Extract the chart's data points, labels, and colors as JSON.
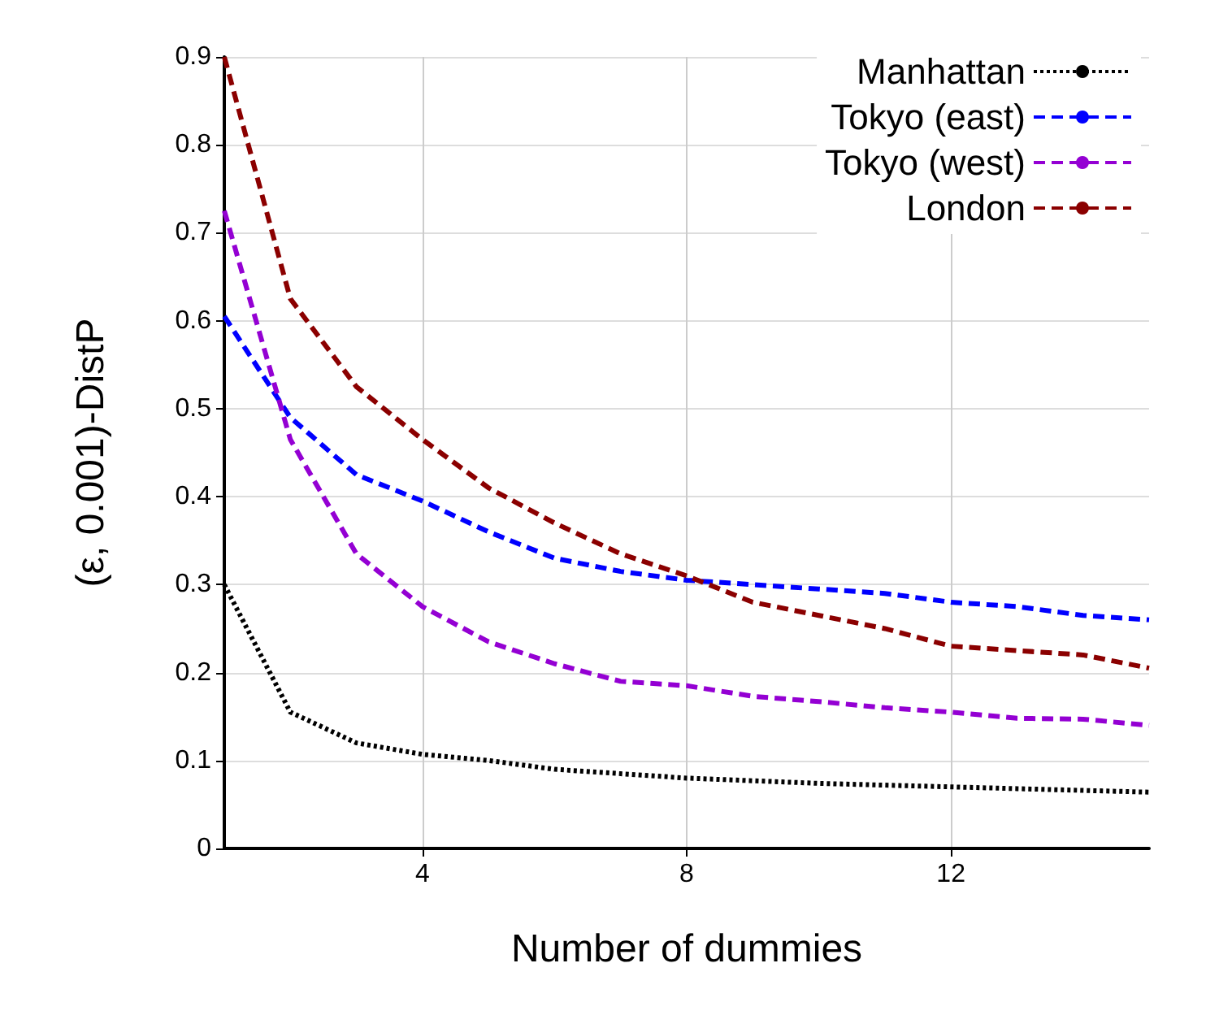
{
  "chart_data": {
    "type": "line",
    "xlabel": "Number of dummies",
    "ylabel": "(ε, 0.001)-DistP",
    "x": [
      1,
      2,
      3,
      4,
      5,
      6,
      7,
      8,
      9,
      10,
      11,
      12,
      13,
      14,
      15
    ],
    "series": [
      {
        "name": "Manhattan",
        "color": "#000000",
        "line_style": "dotted",
        "values": [
          0.3,
          0.155,
          0.12,
          0.107,
          0.1,
          0.09,
          0.085,
          0.08,
          0.077,
          0.074,
          0.072,
          0.07,
          0.068,
          0.066,
          0.064
        ]
      },
      {
        "name": "Tokyo (east)",
        "color": "#0000ff",
        "line_style": "dashed",
        "values": [
          0.605,
          0.49,
          0.425,
          0.395,
          0.36,
          0.33,
          0.315,
          0.305,
          0.3,
          0.295,
          0.29,
          0.28,
          0.275,
          0.265,
          0.26
        ]
      },
      {
        "name": "Tokyo (west)",
        "color": "#9400d3",
        "line_style": "dashed",
        "values": [
          0.725,
          0.465,
          0.335,
          0.275,
          0.235,
          0.21,
          0.19,
          0.185,
          0.173,
          0.167,
          0.16,
          0.155,
          0.148,
          0.147,
          0.14
        ]
      },
      {
        "name": "London",
        "color": "#8b0000",
        "line_style": "dashed",
        "values": [
          0.9,
          0.625,
          0.525,
          0.465,
          0.41,
          0.37,
          0.335,
          0.31,
          0.28,
          0.265,
          0.25,
          0.23,
          0.225,
          0.22,
          0.205
        ]
      }
    ],
    "xlim": [
      1,
      15
    ],
    "xticks": [
      4,
      8,
      12
    ],
    "ylim": [
      0,
      0.9
    ],
    "yticks": [
      0,
      0.1,
      0.2,
      0.3,
      0.4,
      0.5,
      0.6,
      0.7,
      0.8,
      0.9
    ],
    "grid": true,
    "legend": "top right",
    "marker": "none"
  }
}
